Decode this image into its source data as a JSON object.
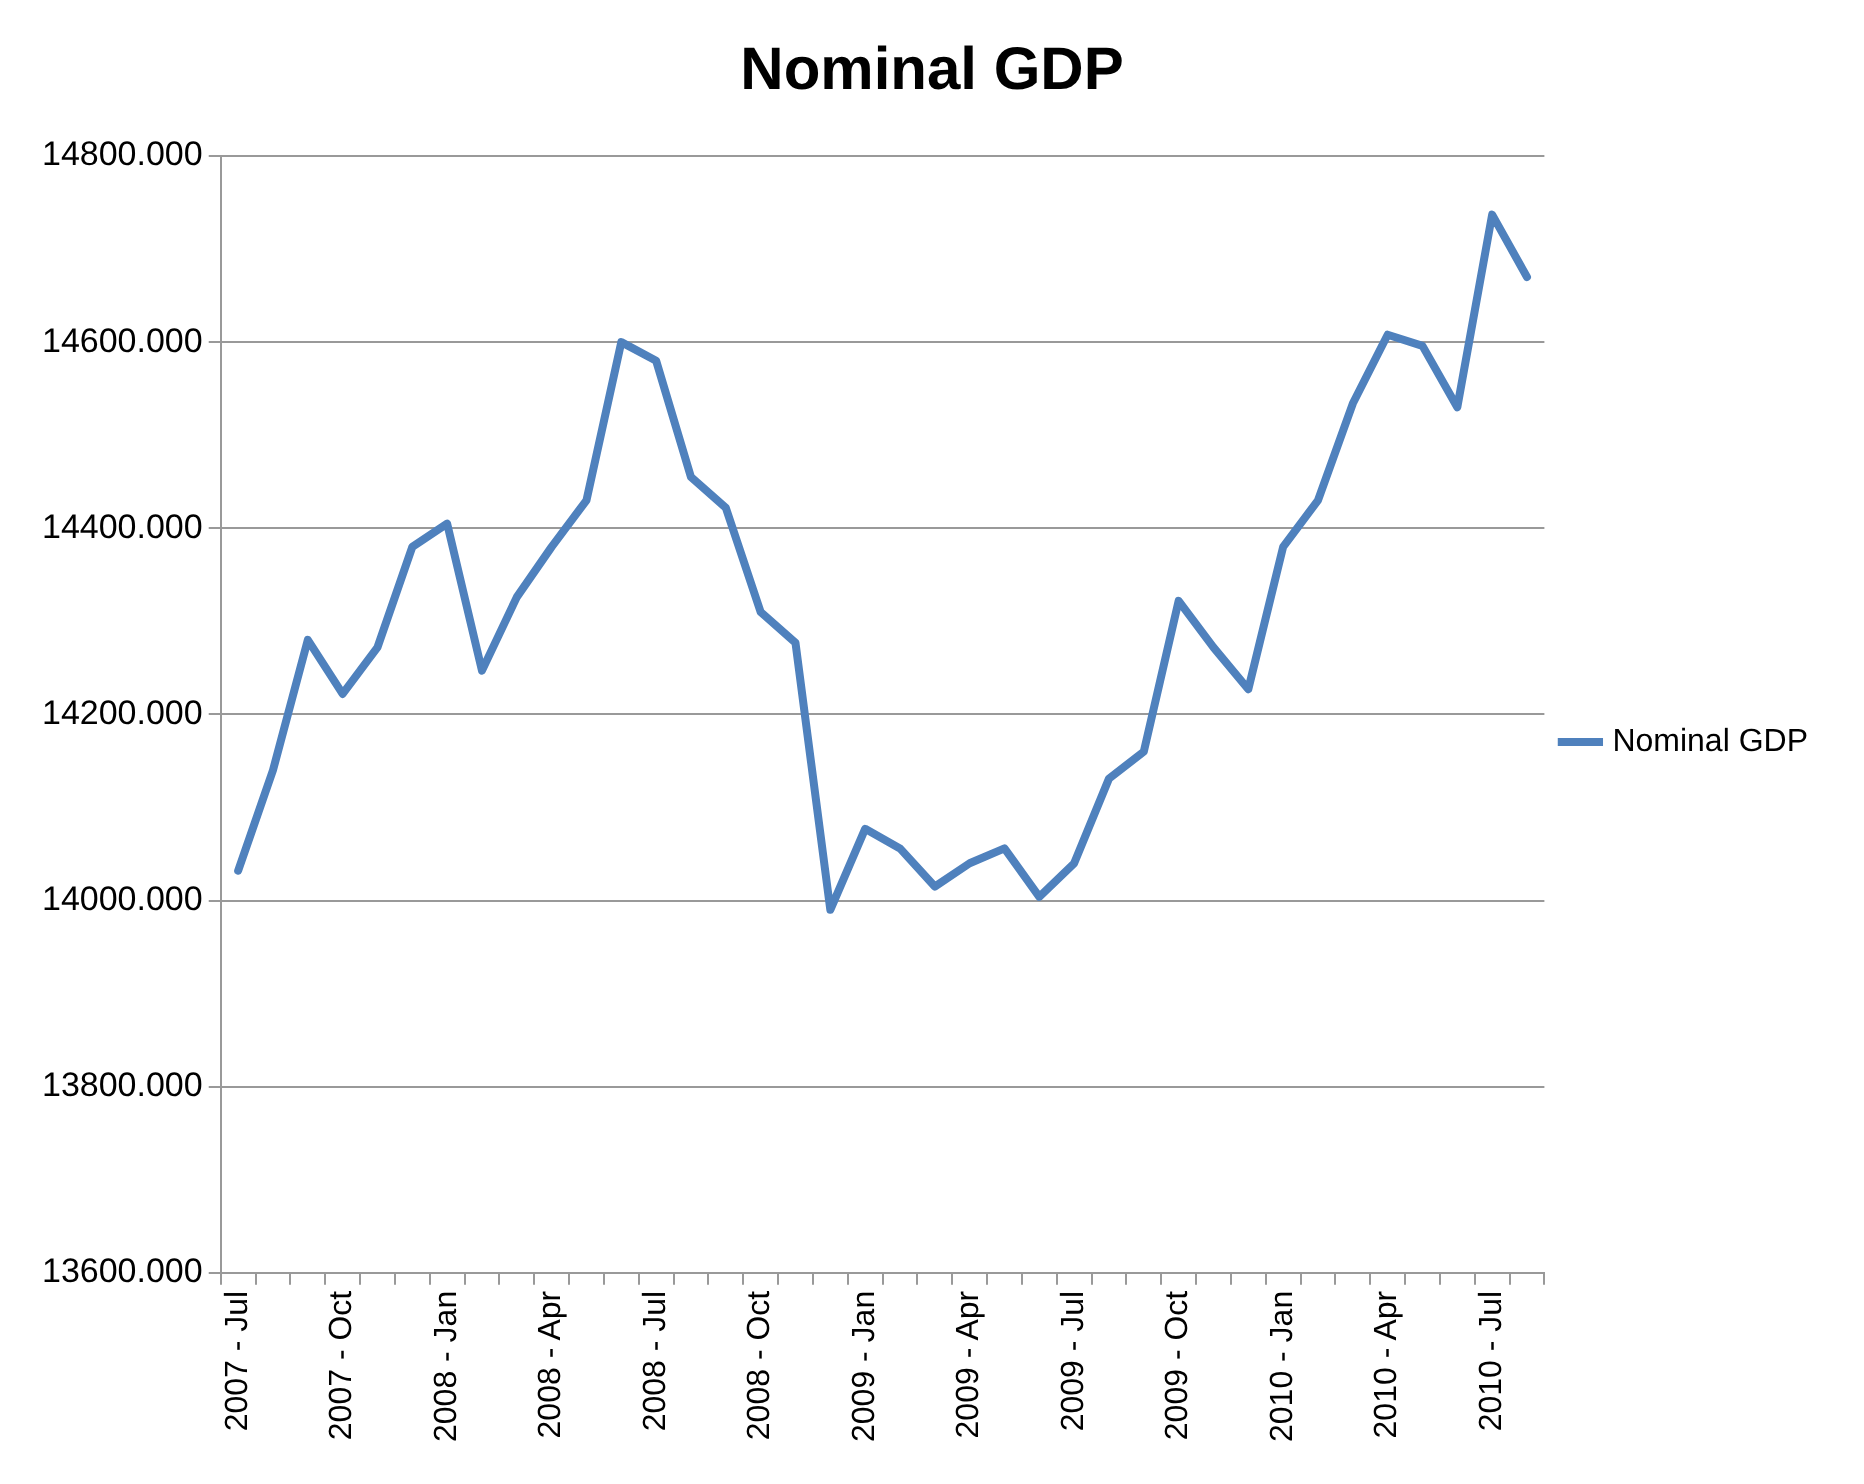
{
  "chart_data": {
    "type": "line",
    "title": "Nominal GDP",
    "categories": [
      "2007 - Jul",
      null,
      null,
      "2007 - Oct",
      null,
      null,
      "2008 - Jan",
      null,
      null,
      "2008 - Apr",
      null,
      null,
      "2008 - Jul",
      null,
      null,
      "2008 - Oct",
      null,
      null,
      "2009 - Jan",
      null,
      null,
      "2009 - Apr",
      null,
      null,
      "2009 - Jul",
      null,
      null,
      "2009 - Oct",
      null,
      null,
      "2010 - Jan",
      null,
      null,
      "2010 - Apr",
      null,
      null,
      "2010 - Jul",
      null
    ],
    "series": [
      {
        "name": "Nominal GDP",
        "color": "#4f81bd",
        "values": [
          14032,
          14140,
          14280,
          14222,
          14272,
          14380,
          14405,
          14247,
          14326,
          14380,
          14430,
          14600,
          14580,
          14455,
          14422,
          14310,
          14277,
          13990,
          14077,
          14056,
          14015,
          14040,
          14056,
          14004,
          14040,
          14131,
          14160,
          14322,
          14272,
          14227,
          14380,
          14430,
          14534,
          14608,
          14596,
          14530,
          14737,
          14670
        ]
      }
    ],
    "ylim": [
      13600,
      14800
    ],
    "yticks": [
      {
        "value": 13600,
        "label": "13600.000"
      },
      {
        "value": 13800,
        "label": "13800.000"
      },
      {
        "value": 14000,
        "label": "14000.000"
      },
      {
        "value": 14200,
        "label": "14200.000"
      },
      {
        "value": 14400,
        "label": "14400.000"
      },
      {
        "value": 14600,
        "label": "14600.000"
      },
      {
        "value": 14800,
        "label": "14800.000"
      }
    ],
    "grid": "y",
    "legend": "right",
    "marker": "none",
    "line_style": "solid"
  }
}
